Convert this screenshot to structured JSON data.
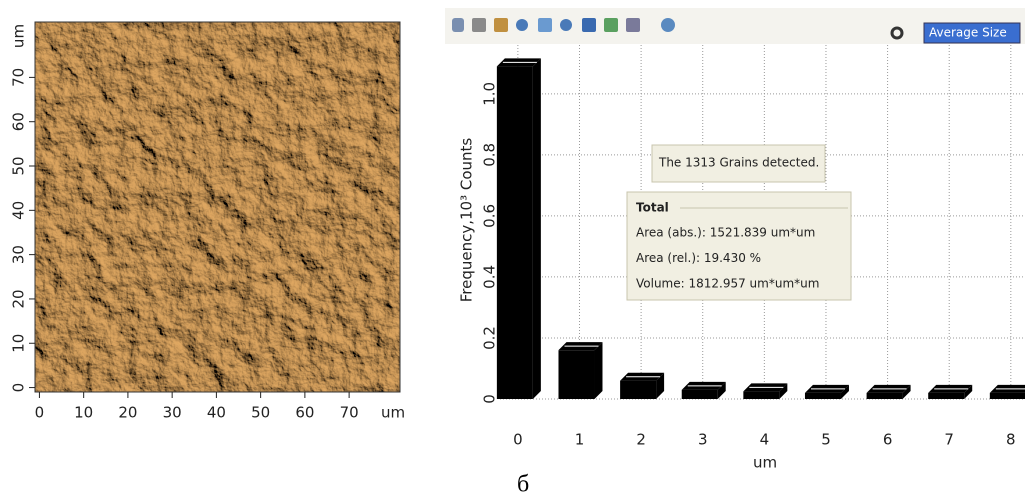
{
  "chart_data": [
    {
      "type": "image",
      "xlabel": "um",
      "ylabel": "um",
      "xlim": [
        -1,
        81.5
      ],
      "ylim": [
        -1,
        82.5
      ],
      "xticks": [
        0,
        10,
        20,
        30,
        40,
        50,
        60,
        70
      ],
      "yticks": [
        0,
        10,
        20,
        30,
        40,
        50,
        60,
        70
      ]
    },
    {
      "type": "bar",
      "xlabel": "um",
      "ylabel": "Frequency,10³ Counts",
      "x": [
        0,
        1,
        2,
        3,
        4,
        5,
        6,
        7,
        8
      ],
      "values": [
        1.09,
        0.16,
        0.06,
        0.03,
        0.025,
        0.02,
        0.02,
        0.02,
        0.02
      ],
      "color": "#000000",
      "xlim": [
        -0.29,
        8.23
      ],
      "ylim": [
        0,
        1.16
      ],
      "xticks": [
        0,
        1,
        2,
        3,
        4,
        5,
        6,
        7,
        8
      ],
      "yticks": [
        0,
        0.2,
        0.4,
        0.6,
        0.8,
        {
          "value": 1,
          "label": "1.0"
        }
      ],
      "grid": true,
      "annotations": {
        "grains": "The 1313 Grains detected.",
        "total": {
          "title": "Total",
          "lines": [
            "Area (abs.): 1521.839 um*um",
            "Area (rel.): 19.430 %",
            "Volume: 1812.957 um*um*um"
          ]
        }
      }
    }
  ],
  "toolbar": {
    "select": "Average Size"
  },
  "caption": "б"
}
